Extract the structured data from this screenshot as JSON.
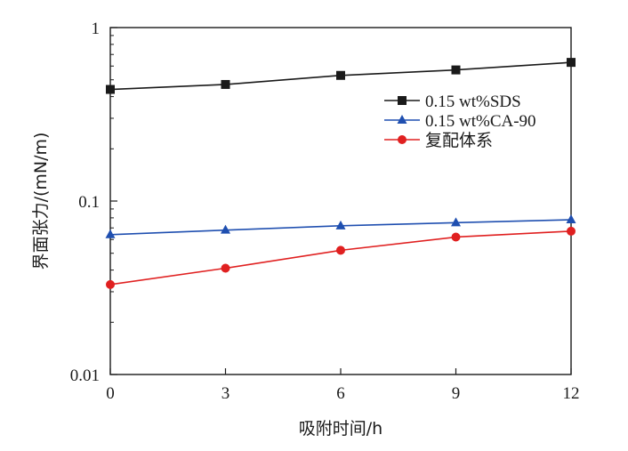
{
  "chart_data": {
    "type": "line",
    "title": "",
    "xlabel": "吸附时间/h",
    "ylabel": "界面张力/(mN/m)",
    "x": [
      0,
      3,
      6,
      9,
      12
    ],
    "xlim": [
      0,
      12
    ],
    "ylim": [
      0.01,
      1
    ],
    "yscale": "log",
    "x_ticks": [
      0,
      3,
      6,
      9,
      12
    ],
    "x_tick_labels": [
      "0",
      "3",
      "6",
      "9",
      "12"
    ],
    "y_ticks": [
      0.01,
      0.1,
      1
    ],
    "y_tick_labels": [
      "0.01",
      "0.1",
      "1"
    ],
    "grid": false,
    "legend_position": "top-right",
    "series": [
      {
        "name": "0.15 wt%SDS",
        "values": [
          0.44,
          0.47,
          0.53,
          0.57,
          0.63
        ],
        "color": "#1a1a1a",
        "marker": "square"
      },
      {
        "name": "0.15 wt%CA-90",
        "values": [
          0.064,
          0.068,
          0.072,
          0.075,
          0.078
        ],
        "color": "#1f4fb0",
        "marker": "triangle"
      },
      {
        "name": "复配体系",
        "values": [
          0.033,
          0.041,
          0.052,
          0.062,
          0.067
        ],
        "color": "#e02020",
        "marker": "circle"
      }
    ]
  }
}
